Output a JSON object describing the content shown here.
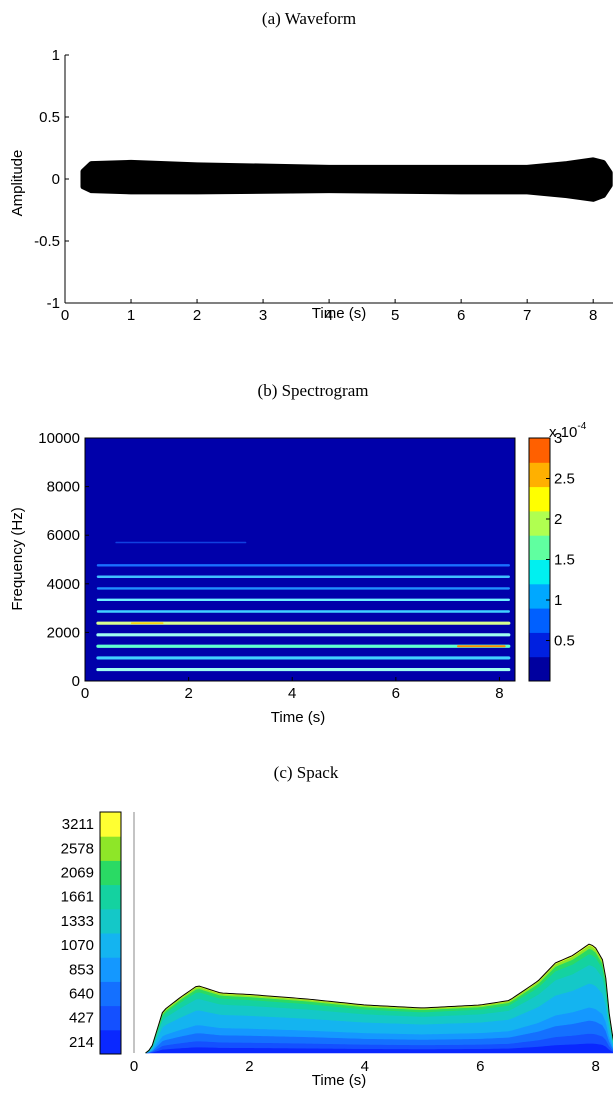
{
  "chart_data": [
    {
      "id": "a",
      "type": "line",
      "title": "(a) Waveform",
      "xlabel": "Time (s)",
      "ylabel": "Amplitude",
      "xlim": [
        0,
        8.3
      ],
      "ylim": [
        -1,
        1
      ],
      "xticks": [
        0,
        1,
        2,
        3,
        4,
        5,
        6,
        7,
        8
      ],
      "yticks": [
        -1,
        -0.5,
        0,
        0.5,
        1
      ],
      "color": "#000000",
      "envelope_upper": [
        [
          0.28,
          0.06
        ],
        [
          0.4,
          0.12
        ],
        [
          1.0,
          0.13
        ],
        [
          2.0,
          0.11
        ],
        [
          4.0,
          0.09
        ],
        [
          6.0,
          0.09
        ],
        [
          7.0,
          0.09
        ],
        [
          7.6,
          0.12
        ],
        [
          8.0,
          0.15
        ],
        [
          8.15,
          0.13
        ],
        [
          8.25,
          0.05
        ]
      ],
      "envelope_lower": [
        [
          0.28,
          -0.06
        ],
        [
          0.4,
          -0.09
        ],
        [
          1.0,
          -0.1
        ],
        [
          2.0,
          -0.1
        ],
        [
          4.0,
          -0.09
        ],
        [
          6.0,
          -0.1
        ],
        [
          7.0,
          -0.1
        ],
        [
          7.6,
          -0.13
        ],
        [
          8.0,
          -0.16
        ],
        [
          8.15,
          -0.13
        ],
        [
          8.25,
          -0.05
        ]
      ]
    },
    {
      "id": "b",
      "type": "heatmap",
      "title": "(b) Spectrogram",
      "xlabel": "Time (s)",
      "ylabel": "Frequency (Hz)",
      "xlim": [
        0,
        8.3
      ],
      "ylim": [
        0,
        10000
      ],
      "xticks": [
        0,
        2,
        4,
        6,
        8
      ],
      "yticks": [
        0,
        2000,
        4000,
        6000,
        8000,
        10000
      ],
      "background": "#0000aa",
      "colorbar": {
        "title": "x 10",
        "exponent": "-4",
        "ticks": [
          "0.5",
          "1",
          "1.5",
          "2",
          "2.5",
          "3"
        ],
        "range": [
          0,
          3
        ],
        "colors": [
          "#00009f",
          "#0020e0",
          "#0060ff",
          "#00a8ff",
          "#00f0f0",
          "#60ffa0",
          "#b0ff50",
          "#ffff00",
          "#ffb000",
          "#ff6000"
        ]
      },
      "harmonics": [
        {
          "f": 470,
          "color": "#9ffff0"
        },
        {
          "f": 950,
          "color": "#40d0ff"
        },
        {
          "f": 1430,
          "color": "#60ffd0"
        },
        {
          "f": 1900,
          "color": "#9ffff0"
        },
        {
          "f": 2380,
          "color": "#d8ff90"
        },
        {
          "f": 2860,
          "color": "#40d0ff"
        },
        {
          "f": 3340,
          "color": "#70f0ff"
        },
        {
          "f": 3810,
          "color": "#2090ff"
        },
        {
          "f": 4290,
          "color": "#40c0ff"
        },
        {
          "f": 4760,
          "color": "#1a70ff"
        },
        {
          "f": 5700,
          "color": "#1040e0"
        }
      ]
    },
    {
      "id": "c",
      "type": "area",
      "title": "(c) Spack",
      "xlabel": "Time (s)",
      "xlim": [
        0,
        8.3
      ],
      "xticks": [
        0,
        2,
        4,
        6,
        8
      ],
      "levels": [
        "214",
        "427",
        "640",
        "853",
        "1070",
        "1333",
        "1661",
        "2069",
        "2578",
        "3211"
      ],
      "colors": [
        "#0a28ff",
        "#1450ff",
        "#1470ff",
        "#1498ff",
        "#14b4f0",
        "#14c8c8",
        "#14d2a0",
        "#2ada64",
        "#8ee628",
        "#ffff32"
      ],
      "layer_fractions": [
        0.09,
        0.09,
        0.12,
        0.12,
        0.22,
        0.17,
        0.1,
        0.05,
        0.03,
        0.01
      ],
      "envelope": [
        [
          0.2,
          0
        ],
        [
          0.3,
          0.03
        ],
        [
          0.5,
          0.28
        ],
        [
          0.8,
          0.37
        ],
        [
          1.1,
          0.45
        ],
        [
          1.5,
          0.4
        ],
        [
          2.0,
          0.39
        ],
        [
          3.0,
          0.36
        ],
        [
          4.0,
          0.32
        ],
        [
          5.0,
          0.3
        ],
        [
          6.0,
          0.32
        ],
        [
          6.5,
          0.35
        ],
        [
          7.0,
          0.48
        ],
        [
          7.3,
          0.6
        ],
        [
          7.6,
          0.65
        ],
        [
          7.9,
          0.73
        ],
        [
          8.0,
          0.7
        ],
        [
          8.15,
          0.6
        ],
        [
          8.25,
          0.2
        ],
        [
          8.35,
          0
        ]
      ]
    }
  ]
}
